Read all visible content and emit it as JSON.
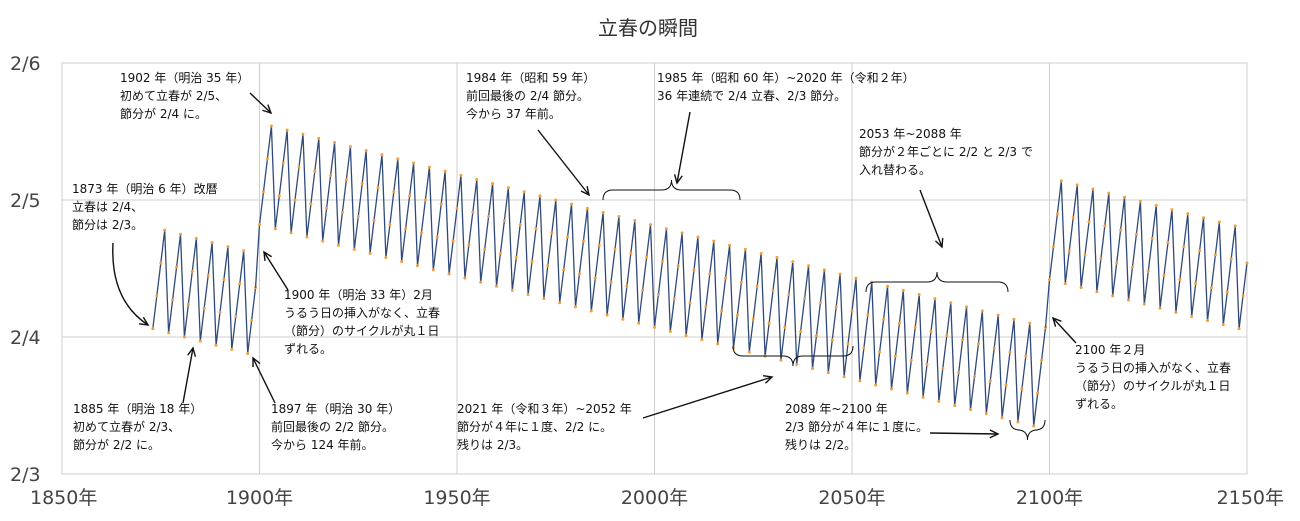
{
  "chart_data": {
    "type": "line",
    "title": "立春の瞬間",
    "xlabel": "",
    "ylabel": "",
    "xlim": [
      1850,
      2150
    ],
    "ylim": [
      3,
      6
    ],
    "x_ticks": [
      {
        "value": 1850,
        "label": "1850年"
      },
      {
        "value": 1900,
        "label": "1900年"
      },
      {
        "value": 1950,
        "label": "1950年"
      },
      {
        "value": 2000,
        "label": "2000年"
      },
      {
        "value": 2050,
        "label": "2050年"
      },
      {
        "value": 2100,
        "label": "2100年"
      },
      {
        "value": 2150,
        "label": "2150年"
      }
    ],
    "y_ticks": [
      {
        "value": 3,
        "label": "2/3"
      },
      {
        "value": 4,
        "label": "2/4"
      },
      {
        "value": 5,
        "label": "2/5"
      },
      {
        "value": 6,
        "label": "2/6"
      }
    ],
    "grid": true,
    "series": [
      {
        "segments": [
          {
            "start_year": 1873,
            "end_year": 1899,
            "cycle_end_value": 4.08,
            "leap_value": 4.06,
            "jump_value": 0.72,
            "drift_per_cycle": -0.03
          },
          {
            "start_year": 1900,
            "end_year": 2099,
            "cycle_end_value": 4.75,
            "leap_value": 4.82,
            "jump_value": 0.72,
            "drift_per_cycle": -0.03
          },
          {
            "start_year": 2100,
            "end_year": 2150,
            "cycle_end_value": 4.16,
            "leap_value": 4.42,
            "jump_value": 0.72,
            "drift_per_cycle": -0.03
          }
        ],
        "colors": {
          "line": "#2f4a7a",
          "marker": "#f39c3a"
        }
      }
    ],
    "annotations": [
      {
        "lines": [
          "1902 年（明治 35 年）",
          "初めて立春が 2/5、",
          "節分が 2/4 に。"
        ]
      },
      {
        "lines": [
          "1873 年（明治 6 年）改暦",
          "立春は 2/4、",
          "節分は 2/3。"
        ]
      },
      {
        "lines": [
          "1885 年（明治 18 年）",
          "初めて立春が 2/3、",
          "節分が 2/2 に。"
        ]
      },
      {
        "lines": [
          "1897 年（明治 30 年）",
          "前回最後の 2/2 節分。",
          "今から 124 年前。"
        ]
      },
      {
        "lines": [
          "1900 年（明治 33 年）2月",
          "うるう日の挿入がなく、立春",
          "（節分）のサイクルが丸１日",
          "ずれる。"
        ]
      },
      {
        "lines": [
          "1984 年（昭和 59 年）",
          "前回最後の 2/4 節分。",
          "今から 37 年前。"
        ]
      },
      {
        "lines": [
          "1985 年（昭和 60 年）~2020 年（令和２年）",
          "36 年連続で 2/4 立春、2/3 節分。"
        ]
      },
      {
        "lines": [
          "2053 年~2088 年",
          "節分が２年ごとに 2/2 と 2/3 で",
          "入れ替わる。"
        ]
      },
      {
        "lines": [
          "2021 年（令和３年）~2052 年",
          "節分が４年に１度、2/2 に。",
          "残りは 2/3。"
        ]
      },
      {
        "lines": [
          "2089 年~2100 年",
          "2/3 節分が４年に１度に。",
          "残りは 2/2。"
        ]
      },
      {
        "lines": [
          "2100 年２月",
          "うるう日の挿入がなく、立春",
          "（節分）のサイクルが丸１日",
          "ずれる。"
        ]
      }
    ]
  }
}
